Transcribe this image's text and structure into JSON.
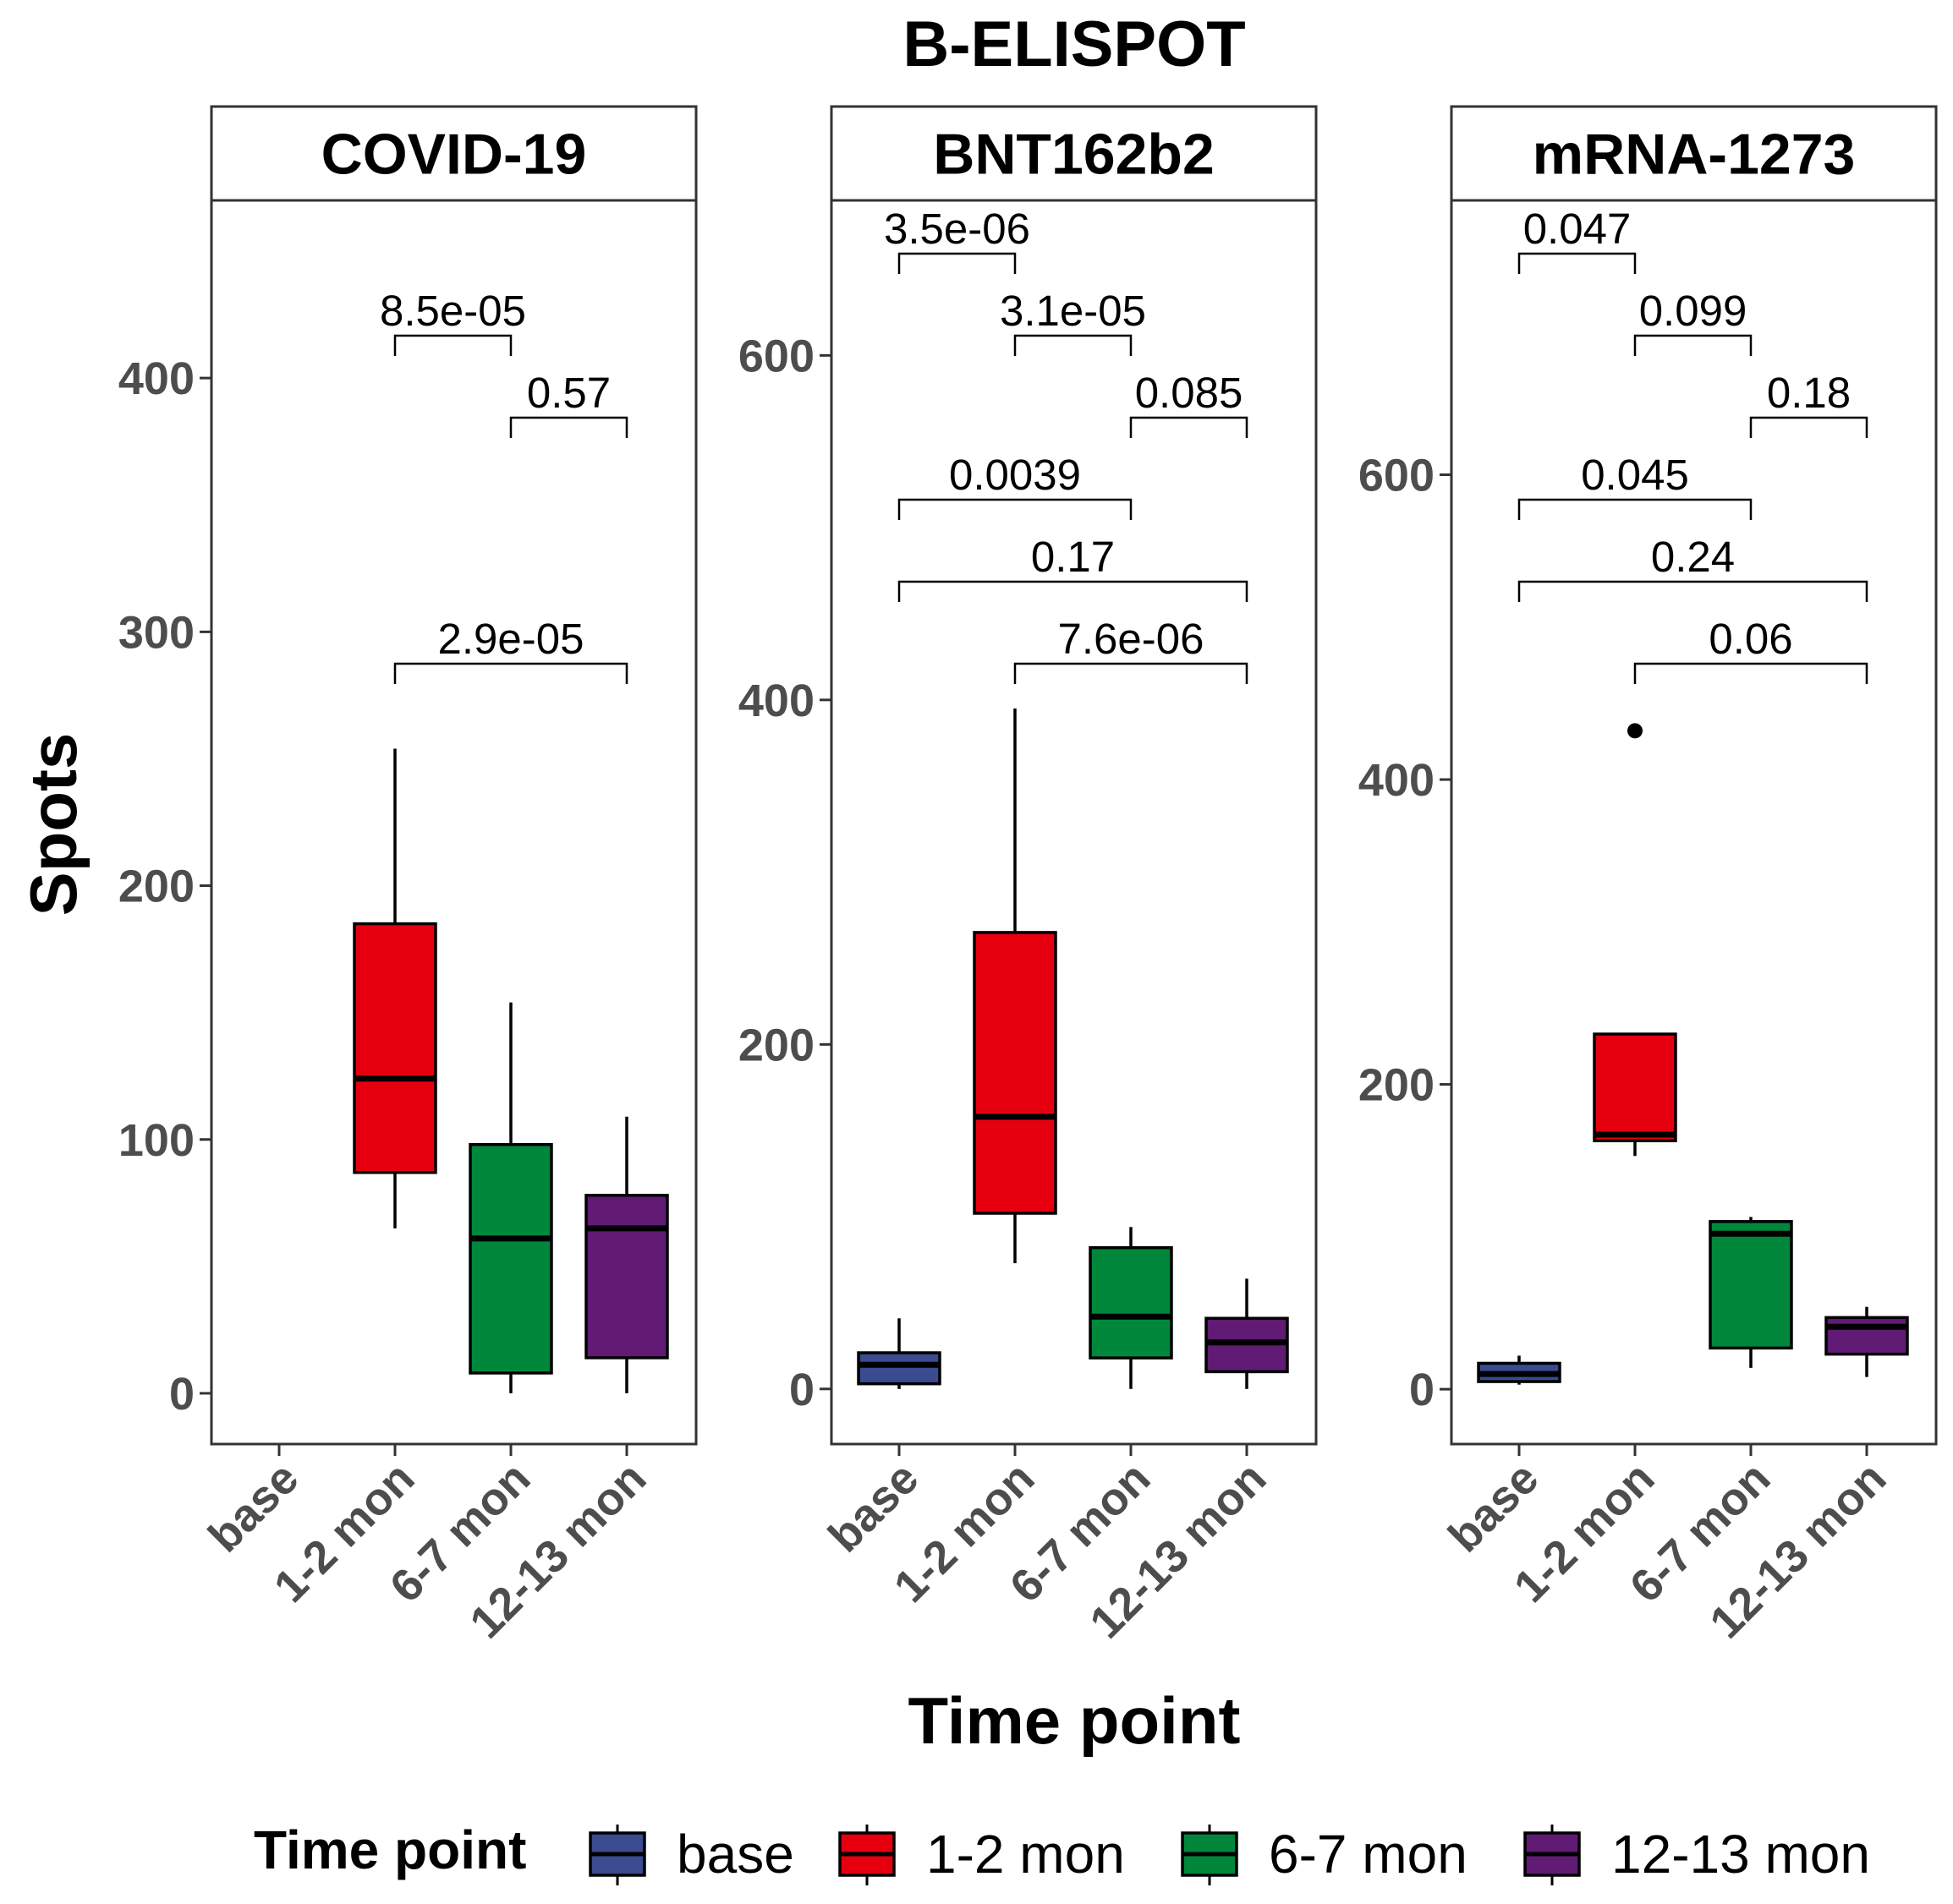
{
  "chart_data": {
    "type": "boxplot",
    "title": "B-ELISPOT",
    "xlabel": "Time point",
    "ylabel": "Spots",
    "categories": [
      "base",
      "1-2 mon",
      "6-7 mon",
      "12-13 mon"
    ],
    "colors": {
      "base": "#3a4b8f",
      "1-2 mon": "#e6000f",
      "6-7 mon": "#00873c",
      "12-13 mon": "#611b74"
    },
    "legend": {
      "title": "Time point",
      "position": "bottom",
      "items": [
        "base",
        "1-2 mon",
        "6-7 mon",
        "12-13 mon"
      ]
    },
    "panels": [
      {
        "strip": "COVID-19",
        "ylim": [
          -20,
          470
        ],
        "yticks": [
          0,
          100,
          200,
          300,
          400
        ],
        "boxes": [
          null,
          {
            "category": "1-2 mon",
            "min": 65,
            "q1": 87,
            "median": 124,
            "q3": 185,
            "max": 254
          },
          {
            "category": "6-7 mon",
            "min": 0,
            "q1": 8,
            "median": 61,
            "q3": 98,
            "max": 154
          },
          {
            "category": "12-13 mon",
            "min": 0,
            "q1": 14,
            "median": 65,
            "q3": 78,
            "max": 109
          }
        ],
        "outliers": [],
        "comparisons": [
          {
            "from": "1-2 mon",
            "to": "6-7 mon",
            "p": "8.5e-05"
          },
          {
            "from": "6-7 mon",
            "to": "12-13 mon",
            "p": "0.57"
          },
          {
            "from": "1-2 mon",
            "to": "12-13 mon",
            "p": "2.9e-05"
          }
        ]
      },
      {
        "strip": "BNT162b2",
        "ylim": [
          -32,
          690
        ],
        "yticks": [
          0,
          200,
          400,
          600
        ],
        "boxes": [
          {
            "category": "base",
            "min": 0,
            "q1": 3,
            "median": 14,
            "q3": 21,
            "max": 41
          },
          {
            "category": "1-2 mon",
            "min": 73,
            "q1": 102,
            "median": 158,
            "q3": 265,
            "max": 395
          },
          {
            "category": "6-7 mon",
            "min": 0,
            "q1": 18,
            "median": 42,
            "q3": 82,
            "max": 94
          },
          {
            "category": "12-13 mon",
            "min": 0,
            "q1": 10,
            "median": 27,
            "q3": 41,
            "max": 64
          }
        ],
        "outliers": [],
        "comparisons": [
          {
            "from": "base",
            "to": "1-2 mon",
            "p": "3.5e-06"
          },
          {
            "from": "1-2 mon",
            "to": "6-7 mon",
            "p": "3.1e-05"
          },
          {
            "from": "6-7 mon",
            "to": "12-13 mon",
            "p": "0.085"
          },
          {
            "from": "base",
            "to": "6-7 mon",
            "p": "0.0039"
          },
          {
            "from": "base",
            "to": "12-13 mon",
            "p": "0.17"
          },
          {
            "from": "1-2 mon",
            "to": "12-13 mon",
            "p": "7.6e-06"
          }
        ]
      },
      {
        "strip": "mRNA-1273",
        "ylim": [
          -36,
          780
        ],
        "yticks": [
          0,
          200,
          400,
          600
        ],
        "boxes": [
          {
            "category": "base",
            "min": 3,
            "q1": 5,
            "median": 10,
            "q3": 17,
            "max": 22
          },
          {
            "category": "1-2 mon",
            "min": 153,
            "q1": 163,
            "median": 167,
            "q3": 233,
            "max": 233
          },
          {
            "category": "6-7 mon",
            "min": 14,
            "q1": 27,
            "median": 102,
            "q3": 110,
            "max": 113
          },
          {
            "category": "12-13 mon",
            "min": 8,
            "q1": 23,
            "median": 41,
            "q3": 47,
            "max": 54
          }
        ],
        "outliers": [
          {
            "category": "1-2 mon",
            "value": 432
          }
        ],
        "comparisons": [
          {
            "from": "base",
            "to": "1-2 mon",
            "p": "0.047"
          },
          {
            "from": "1-2 mon",
            "to": "6-7 mon",
            "p": "0.099"
          },
          {
            "from": "6-7 mon",
            "to": "12-13 mon",
            "p": "0.18"
          },
          {
            "from": "base",
            "to": "6-7 mon",
            "p": "0.045"
          },
          {
            "from": "base",
            "to": "12-13 mon",
            "p": "0.24"
          },
          {
            "from": "1-2 mon",
            "to": "12-13 mon",
            "p": "0.06"
          }
        ]
      }
    ]
  }
}
